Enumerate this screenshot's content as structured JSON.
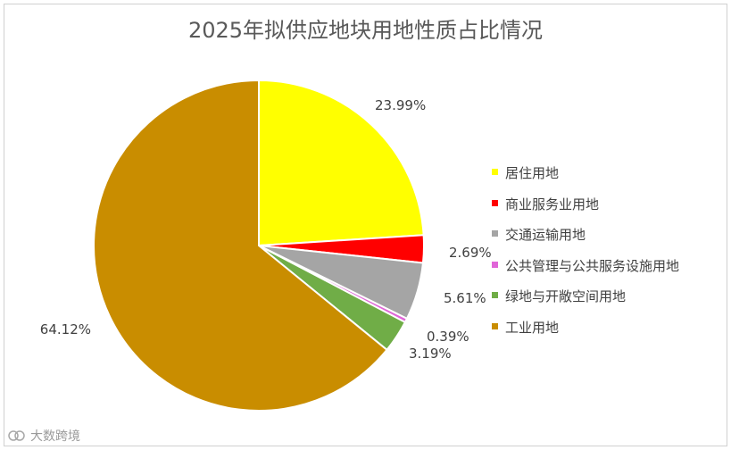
{
  "chart_data": {
    "type": "pie",
    "title": "2025年拟供应地块用地性质占比情况",
    "categories": [
      "居住用地",
      "商业服务业用地",
      "交通运输用地",
      "公共管理与公共服务设施用地",
      "绿地与开敞空间用地",
      "工业用地"
    ],
    "values": [
      23.99,
      2.69,
      5.61,
      0.39,
      3.19,
      64.12
    ],
    "labels": [
      "23.99%",
      "2.69%",
      "5.61%",
      "0.39%",
      "3.19%",
      "64.12%"
    ],
    "colors": [
      "#FFFF00",
      "#FF0000",
      "#A5A5A5",
      "#E066D8",
      "#70AD47",
      "#C98D00"
    ],
    "legend_position": "right"
  },
  "watermark": {
    "text": "大数跨境"
  }
}
